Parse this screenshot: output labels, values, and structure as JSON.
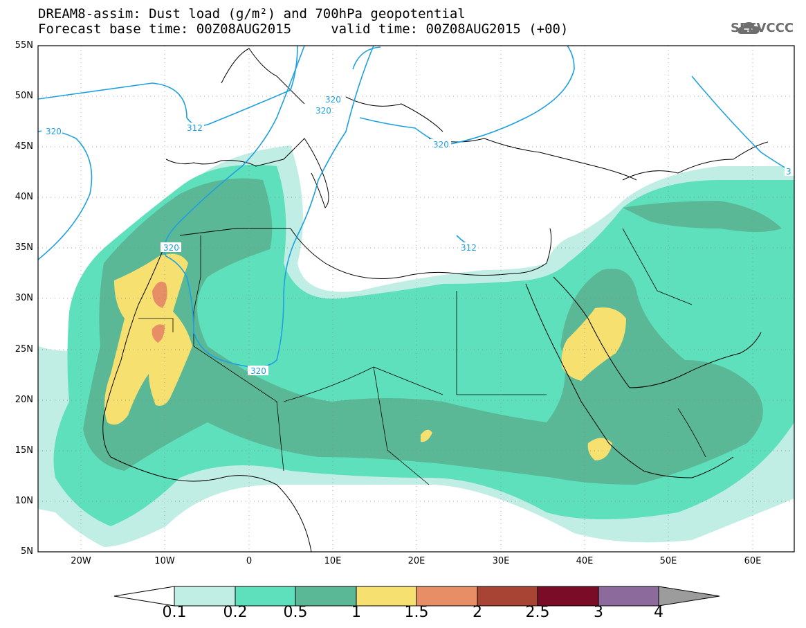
{
  "title": {
    "line1": "DREAM8-assim: Dust load (g/m²) and 700hPa geopotential",
    "line2": "Forecast base time: 00Z08AUG2015     valid time: 00Z08AUG2015 (+00)"
  },
  "logo": {
    "text": "SEEVCCC",
    "icon": "cloud-icon"
  },
  "axes": {
    "lat_labels": [
      "55N",
      "50N",
      "45N",
      "40N",
      "35N",
      "30N",
      "25N",
      "20N",
      "15N",
      "10N",
      "5N"
    ],
    "lon_labels": [
      "20W",
      "10W",
      "0",
      "10E",
      "20E",
      "30E",
      "40E",
      "50E",
      "60E"
    ]
  },
  "contour_labels": [
    "320",
    "312",
    "320",
    "320",
    "320",
    "320",
    "312",
    "320",
    "3"
  ],
  "colorbar": {
    "labels": [
      "0.1",
      "0.2",
      "0.5",
      "1",
      "1.5",
      "2",
      "2.5",
      "3",
      "4"
    ],
    "colors": [
      "#c0ede4",
      "#5ee0bc",
      "#5bb896",
      "#f5e070",
      "#e88e66",
      "#a84434",
      "#7a0c28",
      "#8c6a9c",
      "#9c9c9c"
    ]
  },
  "colors": {
    "contour": "#1ea0e0",
    "coast": "#000000",
    "dust_low": "#c0ede4",
    "dust_mid": "#5ee0bc",
    "dust_high": "#5bb896",
    "dust_yellow": "#f5e070",
    "dust_orange": "#e88e66"
  }
}
